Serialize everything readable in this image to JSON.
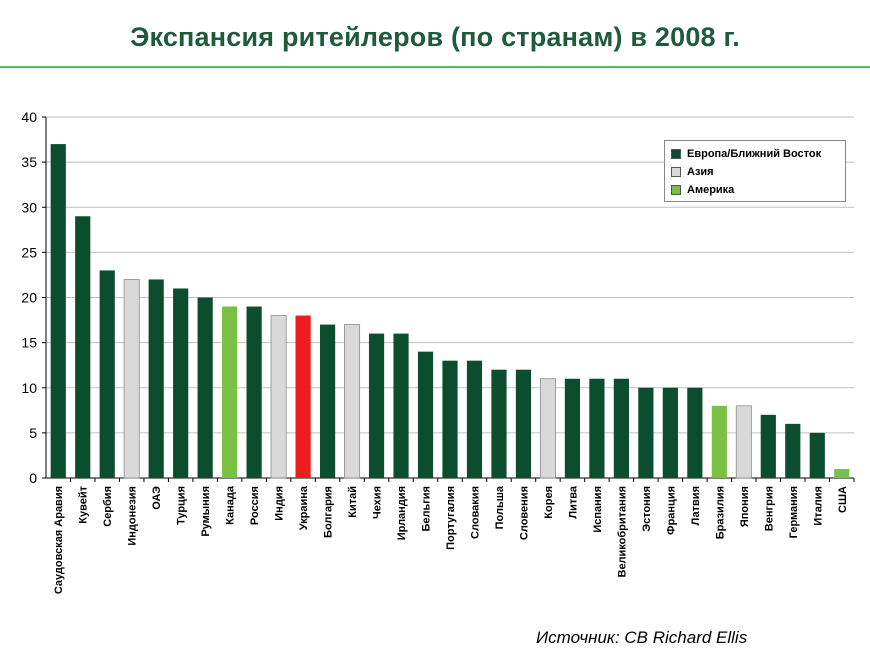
{
  "title": "Экспансия ритейлеров (по странам) в 2008 г.",
  "source": "Источник: CB Richard Ellis",
  "colors": {
    "europe": "#0b4d2e",
    "asia": "#d9d9d9",
    "america": "#7ac143",
    "ukraine": "#ee1c1c",
    "title": "#1f5a3a",
    "rule": "#5cb85c"
  },
  "legend": [
    {
      "label": "Европа/Ближний Восток",
      "color": "#0b4d2e"
    },
    {
      "label": "Азия",
      "color": "#d9d9d9"
    },
    {
      "label": "Америка",
      "color": "#7ac143"
    }
  ],
  "chart_data": {
    "type": "bar",
    "title": "Экспансия ритейлеров (по странам) в 2008 г.",
    "xlabel": "",
    "ylabel": "",
    "ylim": [
      0,
      40
    ],
    "yticks": [
      0,
      5,
      10,
      15,
      20,
      25,
      30,
      35,
      40
    ],
    "grid": true,
    "legend_position": "top-right",
    "categories": [
      "Саудовская Аравия",
      "Кувейт",
      "Сербия",
      "Индонезия",
      "ОАЭ",
      "Турция",
      "Румыния",
      "Канада",
      "Россия",
      "Индия",
      "Украина",
      "Болгария",
      "Китай",
      "Чехия",
      "Ирландия",
      "Бельгия",
      "Португалия",
      "Словакия",
      "Польша",
      "Словения",
      "Корея",
      "Литва",
      "Испания",
      "Великобритания",
      "Эстония",
      "Франция",
      "Латвия",
      "Бразилия",
      "Япония",
      "Венгрия",
      "Германия",
      "Италия",
      "США"
    ],
    "values": [
      37,
      29,
      23,
      22,
      22,
      21,
      20,
      19,
      19,
      18,
      18,
      17,
      17,
      16,
      16,
      14,
      13,
      13,
      12,
      12,
      11,
      11,
      11,
      11,
      10,
      10,
      10,
      8,
      8,
      7,
      6,
      5,
      1
    ],
    "groups": [
      "europe",
      "europe",
      "europe",
      "asia",
      "europe",
      "europe",
      "europe",
      "america",
      "europe",
      "asia",
      "ukraine",
      "europe",
      "asia",
      "europe",
      "europe",
      "europe",
      "europe",
      "europe",
      "europe",
      "europe",
      "asia",
      "europe",
      "europe",
      "europe",
      "europe",
      "europe",
      "europe",
      "america",
      "asia",
      "europe",
      "europe",
      "europe",
      "america"
    ]
  }
}
